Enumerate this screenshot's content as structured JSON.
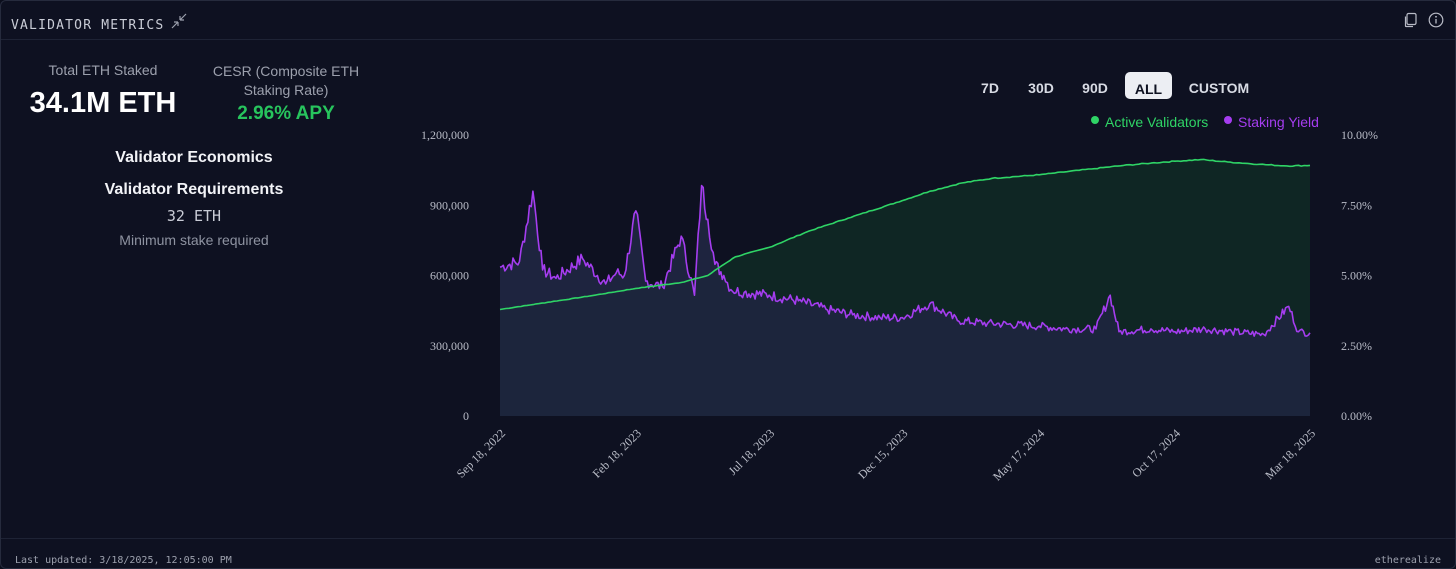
{
  "header": {
    "title": "VALIDATOR METRICS"
  },
  "stats": {
    "total_label": "Total ETH Staked",
    "total_value": "34.1M ETH",
    "cesr_label": "CESR (Composite ETH Staking Rate)",
    "cesr_value": "2.96% APY"
  },
  "economics": {
    "title": "Validator Economics",
    "requirements_title": "Validator Requirements",
    "min_stake": "32 ETH",
    "min_stake_caption": "Minimum stake required"
  },
  "range_buttons": [
    {
      "label": "7D",
      "active": false
    },
    {
      "label": "30D",
      "active": false
    },
    {
      "label": "90D",
      "active": false
    },
    {
      "label": "ALL",
      "active": true
    },
    {
      "label": "CUSTOM",
      "active": false
    }
  ],
  "footer": {
    "last_updated": "Last updated: 3/18/2025, 12:05:00 PM",
    "brand": "etherealize"
  },
  "icons": {
    "collapse": "collapse-arrows-icon",
    "copy": "copy-icon",
    "info": "info-icon"
  },
  "colors": {
    "validators": "#2fd466",
    "yield": "#a53df0",
    "active_button": "#eceef3"
  },
  "chart_data": {
    "type": "line",
    "x_tick_labels": [
      "Sep 18, 2022",
      "Feb 18, 2023",
      "Jul 18, 2023",
      "Dec 15, 2023",
      "May 17, 2024",
      "Oct 17, 2024",
      "Mar 18, 2025"
    ],
    "x_ticks": [
      "2022-09-18",
      "2023-02-18",
      "2023-07-18",
      "2023-12-15",
      "2024-05-17",
      "2024-10-17",
      "2025-03-18"
    ],
    "y_left": {
      "range": [
        0,
        1200000
      ],
      "ticks": [
        0,
        300000,
        600000,
        900000,
        1200000
      ],
      "tick_labels": [
        "0",
        "300,000",
        "600,000",
        "900,000",
        "1,200,000"
      ]
    },
    "y_right": {
      "range": [
        0,
        10
      ],
      "ticks": [
        0,
        2.5,
        5,
        7.5,
        10
      ],
      "tick_labels": [
        "0.00%",
        "2.50%",
        "5.00%",
        "7.50%",
        "10.00%"
      ]
    },
    "legend": {
      "placement": "top-right"
    },
    "series": [
      {
        "name": "Active Validators",
        "axis": "left",
        "color": "#2fd466",
        "points": [
          [
            "2022-09-18",
            455000
          ],
          [
            "2022-11-01",
            480000
          ],
          [
            "2023-01-01",
            515000
          ],
          [
            "2023-02-18",
            545000
          ],
          [
            "2023-04-10",
            570000
          ],
          [
            "2023-05-10",
            600000
          ],
          [
            "2023-05-25",
            640000
          ],
          [
            "2023-06-10",
            680000
          ],
          [
            "2023-07-18",
            720000
          ],
          [
            "2023-09-01",
            790000
          ],
          [
            "2023-10-15",
            845000
          ],
          [
            "2023-12-15",
            920000
          ],
          [
            "2024-01-15",
            960000
          ],
          [
            "2024-02-20",
            995000
          ],
          [
            "2024-03-25",
            1015000
          ],
          [
            "2024-05-17",
            1030000
          ],
          [
            "2024-07-15",
            1055000
          ],
          [
            "2024-08-20",
            1070000
          ],
          [
            "2024-09-20",
            1080000
          ],
          [
            "2024-10-17",
            1088000
          ],
          [
            "2024-11-15",
            1095000
          ],
          [
            "2024-12-15",
            1085000
          ],
          [
            "2025-01-20",
            1075000
          ],
          [
            "2025-02-20",
            1068000
          ],
          [
            "2025-03-18",
            1070000
          ]
        ]
      },
      {
        "name": "Staking Yield",
        "axis": "right",
        "color": "#a53df0",
        "points": [
          [
            "2022-09-18",
            5.3
          ],
          [
            "2022-10-10",
            5.5
          ],
          [
            "2022-10-25",
            8.0
          ],
          [
            "2022-11-05",
            5.2
          ],
          [
            "2022-11-20",
            4.9
          ],
          [
            "2022-12-20",
            5.6
          ],
          [
            "2023-01-15",
            4.7
          ],
          [
            "2023-01-27",
            5.1
          ],
          [
            "2023-02-05",
            5.0
          ],
          [
            "2023-02-18",
            7.3
          ],
          [
            "2023-03-01",
            4.8
          ],
          [
            "2023-03-20",
            4.6
          ],
          [
            "2023-04-10",
            6.4
          ],
          [
            "2023-04-25",
            4.3
          ],
          [
            "2023-05-03",
            8.2
          ],
          [
            "2023-05-10",
            7.0
          ],
          [
            "2023-05-18",
            5.4
          ],
          [
            "2023-05-28",
            5.0
          ],
          [
            "2023-06-05",
            4.5
          ],
          [
            "2023-06-20",
            4.4
          ],
          [
            "2023-07-18",
            4.3
          ],
          [
            "2023-08-20",
            4.1
          ],
          [
            "2023-09-20",
            3.8
          ],
          [
            "2023-10-20",
            3.6
          ],
          [
            "2023-11-20",
            3.5
          ],
          [
            "2023-12-15",
            3.5
          ],
          [
            "2024-01-15",
            4.0
          ],
          [
            "2024-02-15",
            3.4
          ],
          [
            "2024-03-20",
            3.3
          ],
          [
            "2024-05-17",
            3.2
          ],
          [
            "2024-06-15",
            3.1
          ],
          [
            "2024-07-20",
            3.1
          ],
          [
            "2024-08-05",
            4.3
          ],
          [
            "2024-08-15",
            3.0
          ],
          [
            "2024-09-20",
            3.1
          ],
          [
            "2024-10-17",
            3.0
          ],
          [
            "2024-11-20",
            3.1
          ],
          [
            "2024-12-20",
            3.0
          ],
          [
            "2025-01-25",
            2.9
          ],
          [
            "2025-02-22",
            3.9
          ],
          [
            "2025-03-05",
            3.0
          ],
          [
            "2025-03-18",
            2.96
          ]
        ]
      }
    ]
  }
}
